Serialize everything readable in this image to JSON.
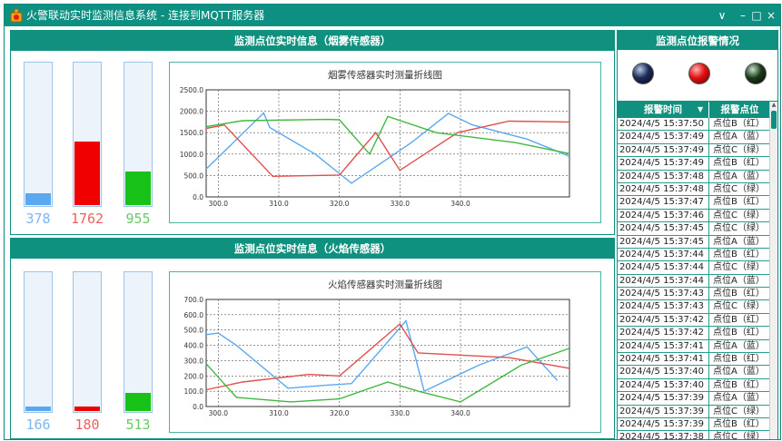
{
  "window": {
    "title": "火警联动实时监测信息系统 - 连接到MQTT服务器",
    "controls": {
      "menu": "∨",
      "minimize": "–",
      "maximize": "□",
      "close": "×"
    }
  },
  "colors": {
    "accent": "#10917f",
    "blue": "#5aa9f0",
    "red": "#f00000",
    "green": "#19c219"
  },
  "smoke": {
    "header": "监测点位实时信息（烟雾传感器）",
    "chart_title": "烟雾传感器实时测量折线图",
    "gauges": [
      {
        "value": "378",
        "level": 0.082,
        "color": "#5aa9f0",
        "text_color": "#7ab8f2"
      },
      {
        "value": "1762",
        "level": 0.448,
        "color": "#f00000",
        "text_color": "#f06060"
      },
      {
        "value": "955",
        "level": 0.236,
        "color": "#19c219",
        "text_color": "#66cc66"
      }
    ]
  },
  "flame": {
    "header": "监测点位实时信息（火焰传感器）",
    "chart_title": "火焰传感器实时测量折线图",
    "gauges": [
      {
        "value": "166",
        "level": 0.03,
        "color": "#5aa9f0",
        "text_color": "#7ab8f2"
      },
      {
        "value": "180",
        "level": 0.035,
        "color": "#f00000",
        "text_color": "#f06060"
      },
      {
        "value": "513",
        "level": 0.13,
        "color": "#19c219",
        "text_color": "#66cc66"
      }
    ]
  },
  "alarm": {
    "header": "监测点位报警情况",
    "leds": [
      "blue",
      "red",
      "green"
    ],
    "columns": [
      "报警时间",
      "报警点位"
    ],
    "rows": [
      [
        "2024/4/5 15:37:50",
        "点位B（红）"
      ],
      [
        "2024/4/5 15:37:49",
        "点位A（蓝）"
      ],
      [
        "2024/4/5 15:37:49",
        "点位C（绿）"
      ],
      [
        "2024/4/5 15:37:49",
        "点位B（红）"
      ],
      [
        "2024/4/5 15:37:48",
        "点位A（蓝）"
      ],
      [
        "2024/4/5 15:37:48",
        "点位C（绿）"
      ],
      [
        "2024/4/5 15:37:47",
        "点位B（红）"
      ],
      [
        "2024/4/5 15:37:46",
        "点位C（绿）"
      ],
      [
        "2024/4/5 15:37:45",
        "点位C（绿）"
      ],
      [
        "2024/4/5 15:37:45",
        "点位A（蓝）"
      ],
      [
        "2024/4/5 15:37:44",
        "点位B（红）"
      ],
      [
        "2024/4/5 15:37:44",
        "点位C（绿）"
      ],
      [
        "2024/4/5 15:37:44",
        "点位A（蓝）"
      ],
      [
        "2024/4/5 15:37:43",
        "点位B（红）"
      ],
      [
        "2024/4/5 15:37:43",
        "点位C（绿）"
      ],
      [
        "2024/4/5 15:37:42",
        "点位B（红）"
      ],
      [
        "2024/4/5 15:37:42",
        "点位B（红）"
      ],
      [
        "2024/4/5 15:37:41",
        "点位A（蓝）"
      ],
      [
        "2024/4/5 15:37:41",
        "点位B（红）"
      ],
      [
        "2024/4/5 15:37:40",
        "点位A（蓝）"
      ],
      [
        "2024/4/5 15:37:40",
        "点位B（红）"
      ],
      [
        "2024/4/5 15:37:39",
        "点位A（蓝）"
      ],
      [
        "2024/4/5 15:37:39",
        "点位C（绿）"
      ],
      [
        "2024/4/5 15:37:39",
        "点位B（红）"
      ],
      [
        "2024/4/5 15:37:38",
        "点位C（绿）"
      ]
    ]
  },
  "chart_data": [
    {
      "type": "line",
      "title": "烟雾传感器实时测量折线图",
      "xlim": [
        298,
        358
      ],
      "ylim": [
        0,
        2500
      ],
      "x_ticks": [
        "300.0",
        "310.0",
        "320.0",
        "330.0",
        "340.0"
      ],
      "y_ticks": [
        "0.0",
        "500.0",
        "1000.0",
        "1500.0",
        "2000.0",
        "2500.0"
      ],
      "grid": true,
      "series": [
        {
          "color": "#5aa9f0",
          "points": [
            [
              298,
              650
            ],
            [
              307.5,
              1960
            ],
            [
              308.5,
              1620
            ],
            [
              316,
              1000
            ],
            [
              322,
              320
            ],
            [
              332,
              1280
            ],
            [
              338,
              1950
            ],
            [
              342,
              1680
            ],
            [
              351,
              1350
            ],
            [
              358,
              950
            ]
          ]
        },
        {
          "color": "#e05050",
          "points": [
            [
              298,
              1600
            ],
            [
              301,
              1680
            ],
            [
              309,
              480
            ],
            [
              320,
              510
            ],
            [
              326,
              1500
            ],
            [
              330,
              620
            ],
            [
              339.5,
              1500
            ],
            [
              348,
              1770
            ],
            [
              358,
              1750
            ]
          ]
        },
        {
          "color": "#40b840",
          "points": [
            [
              298,
              1640
            ],
            [
              304,
              1780
            ],
            [
              318,
              1810
            ],
            [
              320,
              1800
            ],
            [
              325,
              1000
            ],
            [
              328,
              1880
            ],
            [
              336,
              1500
            ],
            [
              349,
              1270
            ],
            [
              358,
              1010
            ]
          ]
        }
      ]
    },
    {
      "type": "line",
      "title": "火焰传感器实时测量折线图",
      "xlim": [
        298,
        358
      ],
      "ylim": [
        0,
        700
      ],
      "x_ticks": [
        "300.0",
        "310.0",
        "320.0",
        "330.0",
        "340.0"
      ],
      "y_ticks": [
        "0.0",
        "100.0",
        "200.0",
        "300.0",
        "400.0",
        "500.0",
        "600.0",
        "700.0"
      ],
      "grid": true,
      "series": [
        {
          "color": "#5aa9f0",
          "points": [
            [
              298,
              470
            ],
            [
              300,
              480
            ],
            [
              303,
              400
            ],
            [
              311.5,
              120
            ],
            [
              318,
              140
            ],
            [
              322,
              150
            ],
            [
              331,
              560
            ],
            [
              334,
              100
            ],
            [
              343,
              270
            ],
            [
              351,
              390
            ],
            [
              356,
              170
            ]
          ]
        },
        {
          "color": "#e05050",
          "points": [
            [
              298,
              110
            ],
            [
              304,
              160
            ],
            [
              315,
              210
            ],
            [
              320,
              200
            ],
            [
              330,
              540
            ],
            [
              333,
              350
            ],
            [
              348,
              320
            ],
            [
              358,
              250
            ]
          ]
        },
        {
          "color": "#40b840",
          "points": [
            [
              298,
              280
            ],
            [
              303,
              60
            ],
            [
              312,
              30
            ],
            [
              320,
              50
            ],
            [
              328,
              160
            ],
            [
              333,
              100
            ],
            [
              340,
              30
            ],
            [
              350,
              270
            ],
            [
              358,
              380
            ]
          ]
        }
      ]
    }
  ]
}
